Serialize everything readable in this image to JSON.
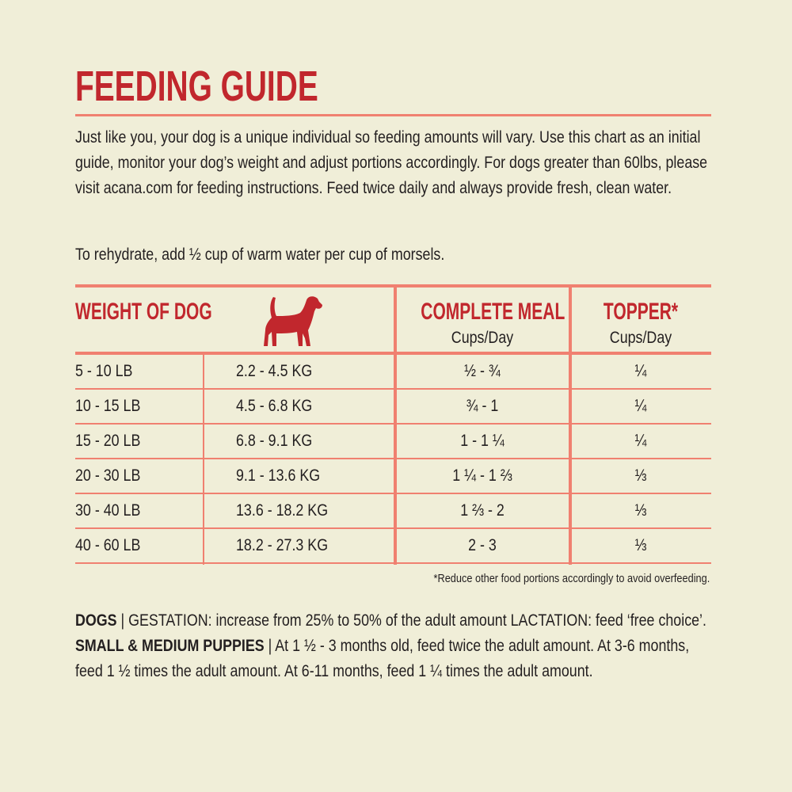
{
  "title": "FEEDING GUIDE",
  "intro": "Just like you, your dog is a unique individual so feeding amounts will vary. Use this chart as an initial guide, monitor your dog’s weight and adjust portions accordingly. For dogs greater than 60lbs, please visit acana.com for feeding instructions. Feed twice daily and always provide fresh, clean water.",
  "rehydrate": "To rehydrate, add ½ cup of warm water per cup of morsels.",
  "colors": {
    "accent_red": "#c1272d",
    "rule_salmon": "#f08070",
    "background": "#f0eed8"
  },
  "table": {
    "headers": {
      "weight": "WEIGHT OF DOG",
      "weight_icon": "dog-silhouette-icon",
      "complete_meal": "COMPLETE MEAL",
      "complete_meal_unit": "Cups/Day",
      "topper": "TOPPER*",
      "topper_unit": "Cups/Day"
    },
    "rows": [
      {
        "lb": "5 - 10 LB",
        "kg": "2.2 - 4.5 KG",
        "meal": "½ - ¾",
        "topper": "¼"
      },
      {
        "lb": "10 - 15 LB",
        "kg": "4.5 - 6.8 KG",
        "meal": "¾ - 1",
        "topper": "¼"
      },
      {
        "lb": "15 - 20 LB",
        "kg": "6.8 - 9.1 KG",
        "meal": "1 - 1 ¼",
        "topper": "¼"
      },
      {
        "lb": "20 - 30 LB",
        "kg": "9.1 - 13.6 KG",
        "meal": "1 ¼ - 1 ⅔",
        "topper": "⅓"
      },
      {
        "lb": "30 - 40 LB",
        "kg": "13.6 - 18.2 KG",
        "meal": "1 ⅔ - 2",
        "topper": "⅓"
      },
      {
        "lb": "40 - 60 LB",
        "kg": "18.2 - 27.3 KG",
        "meal": "2 - 3",
        "topper": "⅓"
      }
    ]
  },
  "footnote": "*Reduce other food portions accordingly to avoid overfeeding.",
  "notes": {
    "dogs_label": "DOGS",
    "dogs_text": " | GESTATION: increase from 25% to 50% of the adult amount LACTATION: feed ‘free choice’. ",
    "puppies_label": "SMALL & MEDIUM PUPPIES",
    "puppies_text": " | At 1 ½ - 3 months old, feed twice the adult amount. At 3-6 months, feed 1 ½ times the adult amount. At 6-11 months, feed 1 ¼ times the adult amount."
  }
}
